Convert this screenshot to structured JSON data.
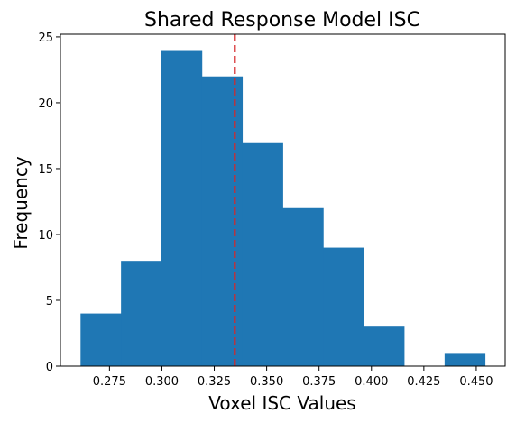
{
  "chart_data": {
    "type": "bar",
    "title": "Shared Response Model ISC",
    "xlabel": "Voxel ISC Values",
    "ylabel": "Frequency",
    "bins": [
      {
        "start": 0.2612,
        "end": 0.2805,
        "count": 4
      },
      {
        "start": 0.2805,
        "end": 0.2998,
        "count": 8
      },
      {
        "start": 0.2998,
        "end": 0.3191,
        "count": 24
      },
      {
        "start": 0.3191,
        "end": 0.3384,
        "count": 22
      },
      {
        "start": 0.3384,
        "end": 0.3577,
        "count": 17
      },
      {
        "start": 0.3577,
        "end": 0.377,
        "count": 12
      },
      {
        "start": 0.377,
        "end": 0.3963,
        "count": 9
      },
      {
        "start": 0.3963,
        "end": 0.4156,
        "count": 3
      },
      {
        "start": 0.4156,
        "end": 0.4349,
        "count": 0
      },
      {
        "start": 0.4349,
        "end": 0.4542,
        "count": 1
      }
    ],
    "mean_line": {
      "x": 0.3348,
      "color": "#d62728",
      "style": "dashed"
    },
    "bar_color": "#1f77b4",
    "xlim": [
      0.2516,
      0.4638
    ],
    "ylim": [
      0,
      25.2
    ],
    "xticks": [
      0.275,
      0.3,
      0.325,
      0.35,
      0.375,
      0.4,
      0.425,
      0.45
    ],
    "xtick_labels": [
      "0.275",
      "0.300",
      "0.325",
      "0.350",
      "0.375",
      "0.400",
      "0.425",
      "0.450"
    ],
    "yticks": [
      0,
      5,
      10,
      15,
      20,
      25
    ],
    "ytick_labels": [
      "0",
      "5",
      "10",
      "15",
      "20",
      "25"
    ],
    "grid": false
  }
}
